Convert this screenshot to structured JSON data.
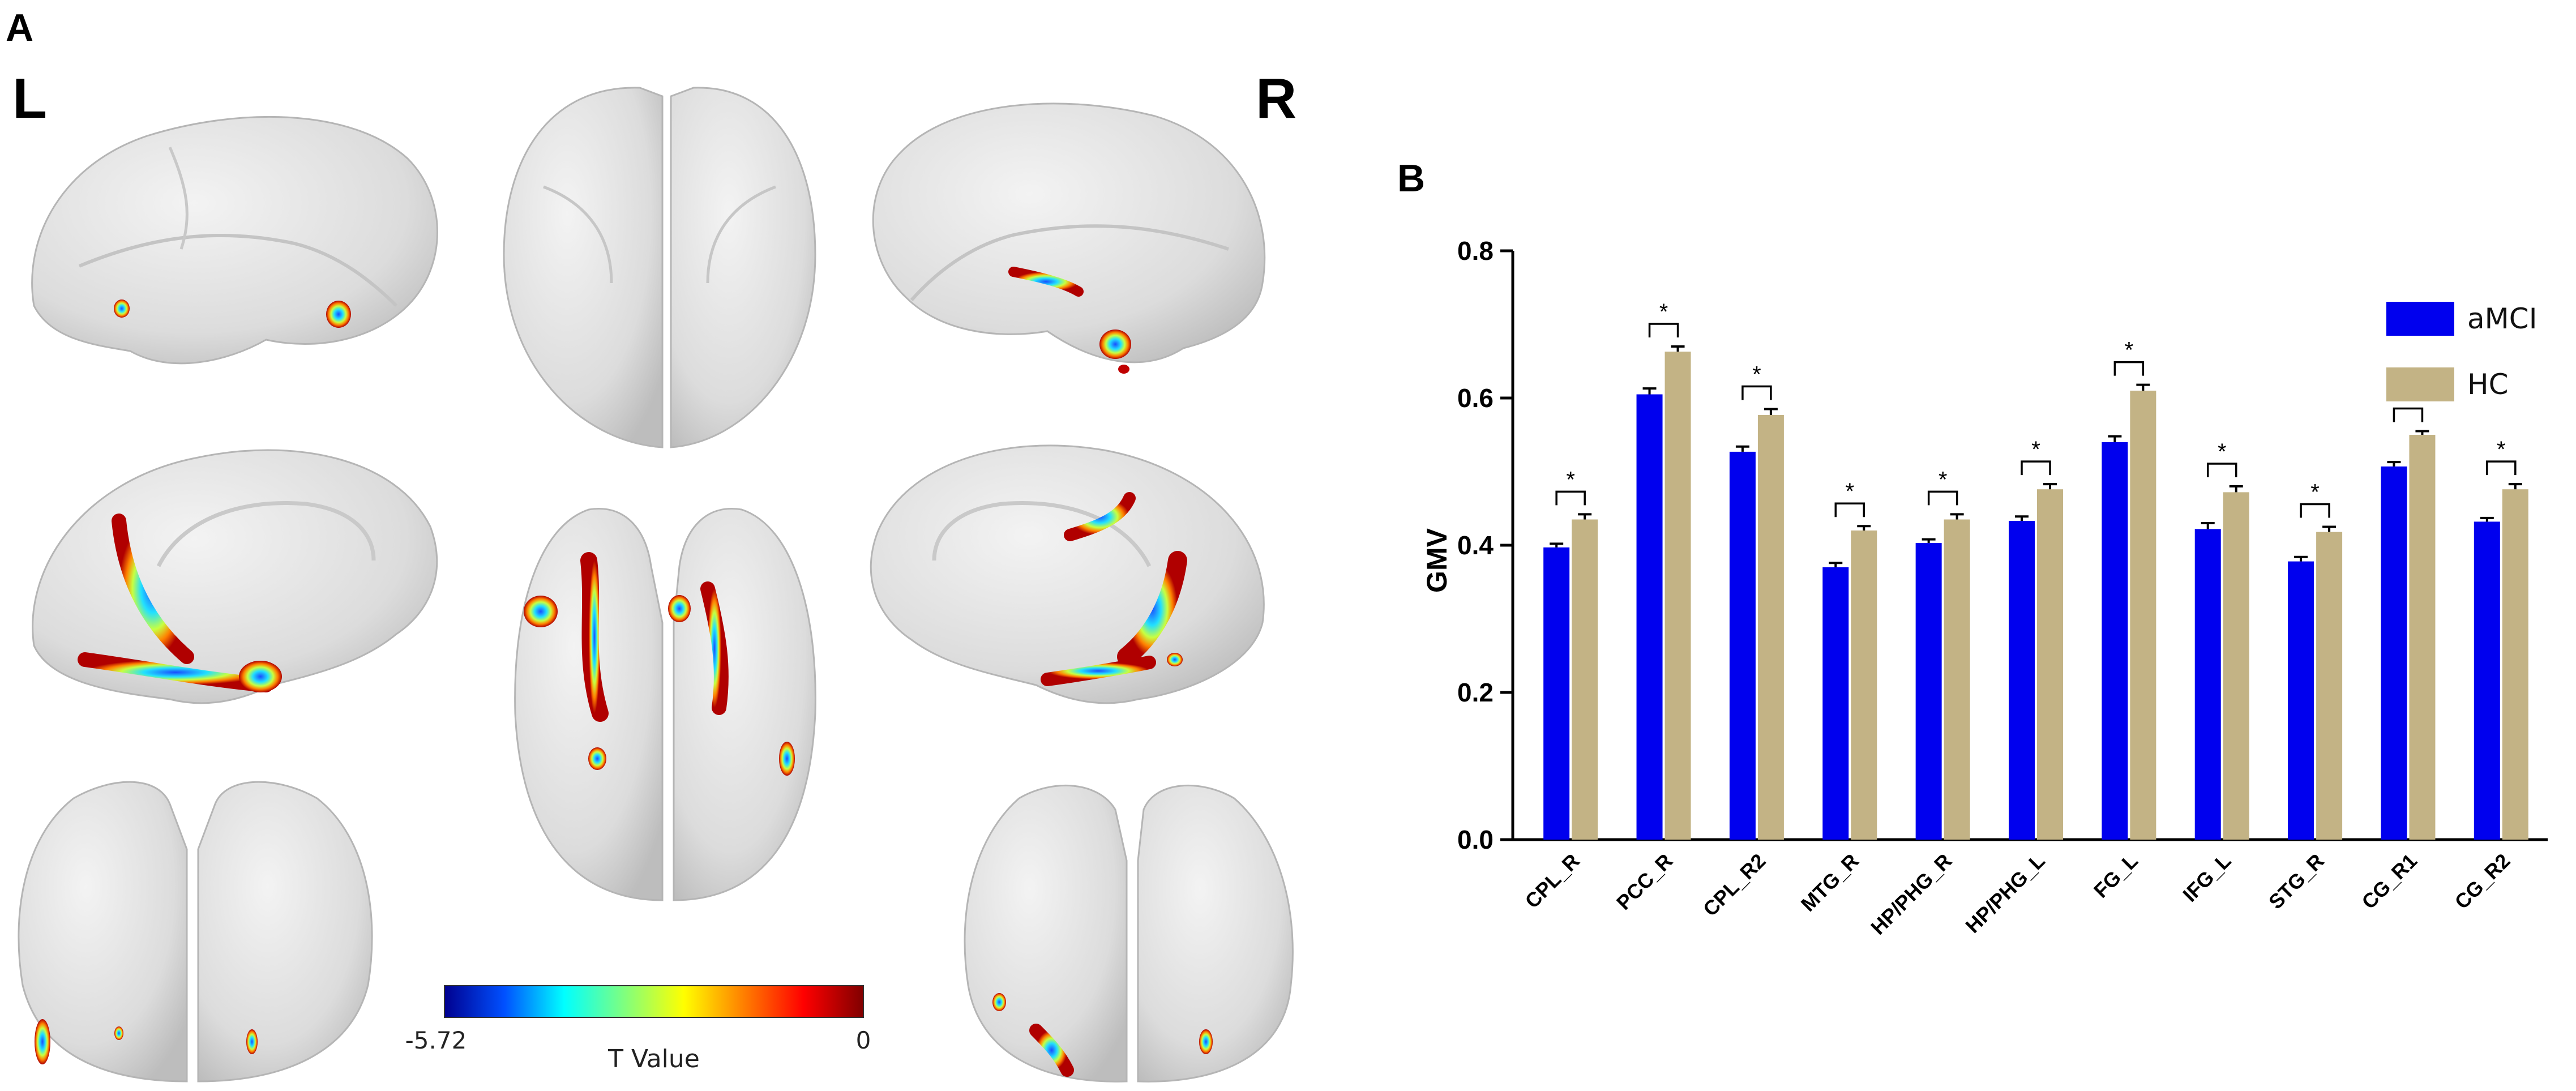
{
  "panel_a": {
    "label": "A",
    "left_label": "L",
    "right_label": "R",
    "colorbar": {
      "min_label": "-5.72",
      "max_label": "0",
      "title": "T Value",
      "colors": [
        "#00008f",
        "#0050ff",
        "#00ffff",
        "#7fff7f",
        "#ffff00",
        "#ff7f00",
        "#ff0000",
        "#800000"
      ]
    },
    "brain_color": "#e2e2e2"
  },
  "panel_b": {
    "label": "B"
  },
  "chart_data": {
    "type": "bar",
    "ylabel": "GMV",
    "xlabel": "",
    "ylim": [
      0,
      0.8
    ],
    "yticks": [
      "0.0",
      "0.2",
      "0.4",
      "0.6",
      "0.8"
    ],
    "ytick_values": [
      0,
      0.2,
      0.4,
      0.6,
      0.8
    ],
    "categories": [
      "CPL_R",
      "PCC_R",
      "CPL_R2",
      "MTG_R",
      "HP/PHG_R",
      "HP/PHG_L",
      "FG_L",
      "IFG_L",
      "STG_R",
      "CG_R1",
      "CG_R2"
    ],
    "series": [
      {
        "name": "aMCI",
        "color": "#0000ee",
        "values": [
          0.397,
          0.605,
          0.527,
          0.37,
          0.403,
          0.433,
          0.54,
          0.422,
          0.378,
          0.507,
          0.432
        ],
        "errors": [
          0.005,
          0.008,
          0.007,
          0.006,
          0.005,
          0.006,
          0.008,
          0.008,
          0.006,
          0.006,
          0.005
        ]
      },
      {
        "name": "HC",
        "color": "#c3b385",
        "values": [
          0.435,
          0.663,
          0.577,
          0.42,
          0.435,
          0.476,
          0.61,
          0.472,
          0.418,
          0.55,
          0.476
        ],
        "errors": [
          0.007,
          0.007,
          0.008,
          0.006,
          0.007,
          0.007,
          0.008,
          0.008,
          0.007,
          0.005,
          0.007
        ]
      }
    ],
    "significance_marker": "*",
    "legend_position": "top-right",
    "grid": false
  }
}
